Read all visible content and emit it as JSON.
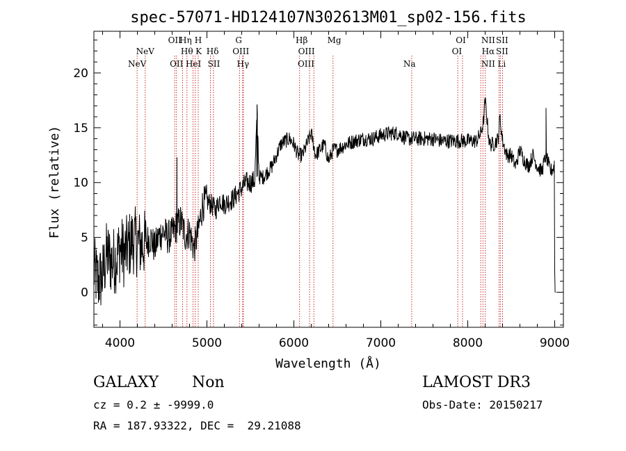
{
  "chart_data": {
    "type": "line",
    "title": "spec-57071-HD124107N302613M01_sp02-156.fits",
    "xlabel": "Wavelength (Å)",
    "ylabel": "Flux (relative)",
    "xlim": [
      3700,
      9100
    ],
    "ylim": [
      -3.2,
      23.8
    ],
    "xticks": [
      4000,
      5000,
      6000,
      7000,
      8000,
      9000
    ],
    "xtick_labels": [
      "4000",
      "5000",
      "6000",
      "7000",
      "8000",
      "9000"
    ],
    "yticks": [
      0,
      5,
      10,
      15,
      20
    ],
    "ytick_labels": [
      "0",
      "5",
      "10",
      "15",
      "20"
    ],
    "grid": false,
    "series": [
      {
        "name": "spectrum",
        "x": [
          3700,
          3750,
          3800,
          3850,
          3900,
          3950,
          4000,
          4050,
          4100,
          4150,
          4200,
          4250,
          4300,
          4350,
          4400,
          4450,
          4500,
          4550,
          4600,
          4650,
          4700,
          4750,
          4800,
          4850,
          4900,
          4950,
          5000,
          5050,
          5100,
          5150,
          5200,
          5250,
          5300,
          5350,
          5400,
          5450,
          5500,
          5550,
          5577,
          5600,
          5650,
          5700,
          5750,
          5800,
          5850,
          5900,
          5950,
          6000,
          6050,
          6100,
          6150,
          6200,
          6250,
          6300,
          6350,
          6400,
          6450,
          6500,
          6600,
          6700,
          6800,
          6900,
          7000,
          7100,
          7200,
          7300,
          7400,
          7500,
          7600,
          7700,
          7800,
          7900,
          8000,
          8100,
          8150,
          8180,
          8200,
          8250,
          8300,
          8350,
          8370,
          8400,
          8450,
          8500,
          8550,
          8600,
          8650,
          8700,
          8750,
          8800,
          8850,
          8900,
          8950,
          9000,
          9010
        ],
        "y": [
          2.0,
          1.0,
          1.5,
          3.5,
          2.8,
          3.0,
          4.0,
          3.5,
          4.2,
          4.8,
          4.5,
          4.3,
          4.5,
          5.0,
          4.0,
          5.2,
          5.5,
          5.0,
          5.3,
          6.0,
          6.5,
          5.2,
          5.5,
          4.0,
          5.5,
          8.0,
          8.3,
          8.0,
          7.5,
          8.5,
          8.0,
          8.3,
          8.5,
          9.0,
          9.5,
          10.0,
          10.0,
          10.2,
          16.5,
          10.5,
          10.5,
          11.0,
          11.5,
          12.5,
          13.5,
          13.8,
          14.0,
          13.5,
          12.5,
          12.5,
          13.5,
          14.5,
          12.5,
          13.0,
          13.5,
          12.0,
          13.0,
          13.0,
          13.5,
          13.8,
          14.0,
          14.0,
          14.3,
          14.5,
          14.5,
          14.0,
          14.0,
          14.0,
          14.0,
          13.8,
          13.8,
          13.8,
          13.8,
          13.8,
          14.5,
          15.5,
          17.5,
          13.5,
          13.5,
          14.0,
          16.0,
          13.8,
          12.5,
          12.5,
          11.5,
          13.0,
          12.0,
          11.5,
          12.5,
          11.5,
          11.0,
          12.5,
          11.0,
          11.5,
          0.0
        ]
      }
    ],
    "line_markers": [
      {
        "wavelength": 4197,
        "label": "NeV",
        "row": 2
      },
      {
        "wavelength": 4290,
        "label": "NeV",
        "row": 1
      },
      {
        "wavelength": 4630,
        "label": "OII",
        "row": 0
      },
      {
        "wavelength": 4650,
        "label": "OII",
        "row": 2
      },
      {
        "wavelength": 4755,
        "label": "Hη",
        "row": 0
      },
      {
        "wavelength": 4770,
        "label": "Hθ",
        "row": 1
      },
      {
        "wavelength": 4845,
        "label": "HeI",
        "row": 2
      },
      {
        "wavelength": 4900,
        "label": "H",
        "row": 0
      },
      {
        "wavelength": 4905,
        "label": "K",
        "row": 1
      },
      {
        "wavelength": 5065,
        "label": "Hδ",
        "row": 1
      },
      {
        "wavelength": 5080,
        "label": "SII",
        "row": 2
      },
      {
        "wavelength": 5365,
        "label": "G",
        "row": 0
      },
      {
        "wavelength": 5390,
        "label": "OIII",
        "row": 1
      },
      {
        "wavelength": 5415,
        "label": "Hγ",
        "row": 2
      },
      {
        "wavelength": 6090,
        "label": "Hβ",
        "row": 0
      },
      {
        "wavelength": 6145,
        "label": "OIII",
        "row": 1
      },
      {
        "wavelength": 6140,
        "label": "OIII",
        "row": 2
      },
      {
        "wavelength": 6465,
        "label": "Mg",
        "row": 0
      },
      {
        "wavelength": 7330,
        "label": "Na",
        "row": 2
      },
      {
        "wavelength": 7920,
        "label": "OI",
        "row": 0
      },
      {
        "wavelength": 7875,
        "label": "OI",
        "row": 1
      },
      {
        "wavelength": 8235,
        "label": "NII",
        "row": 0
      },
      {
        "wavelength": 8235,
        "label": "Hα",
        "row": 1
      },
      {
        "wavelength": 8235,
        "label": "NII",
        "row": 2
      },
      {
        "wavelength": 8395,
        "label": "SII",
        "row": 0
      },
      {
        "wavelength": 8395,
        "label": "SII",
        "row": 1
      },
      {
        "wavelength": 8390,
        "label": "Li",
        "row": 2
      }
    ],
    "marker_lines": [
      4197,
      4290,
      4630,
      4650,
      4720,
      4770,
      4840,
      4865,
      4900,
      5040,
      5075,
      5375,
      5410,
      5420,
      6065,
      6180,
      6230,
      6450,
      7355,
      7885,
      7940,
      8150,
      8175,
      8200,
      8360,
      8375,
      8400
    ]
  },
  "info": {
    "object_class": "GALAXY",
    "subclass": "Non",
    "survey": "LAMOST DR3",
    "redshift_line": "cz = 0.2 ± -9999.0",
    "obs_date": "Obs-Date: 20150217",
    "coords": "RA = 187.93322, DEC =  29.21088"
  }
}
